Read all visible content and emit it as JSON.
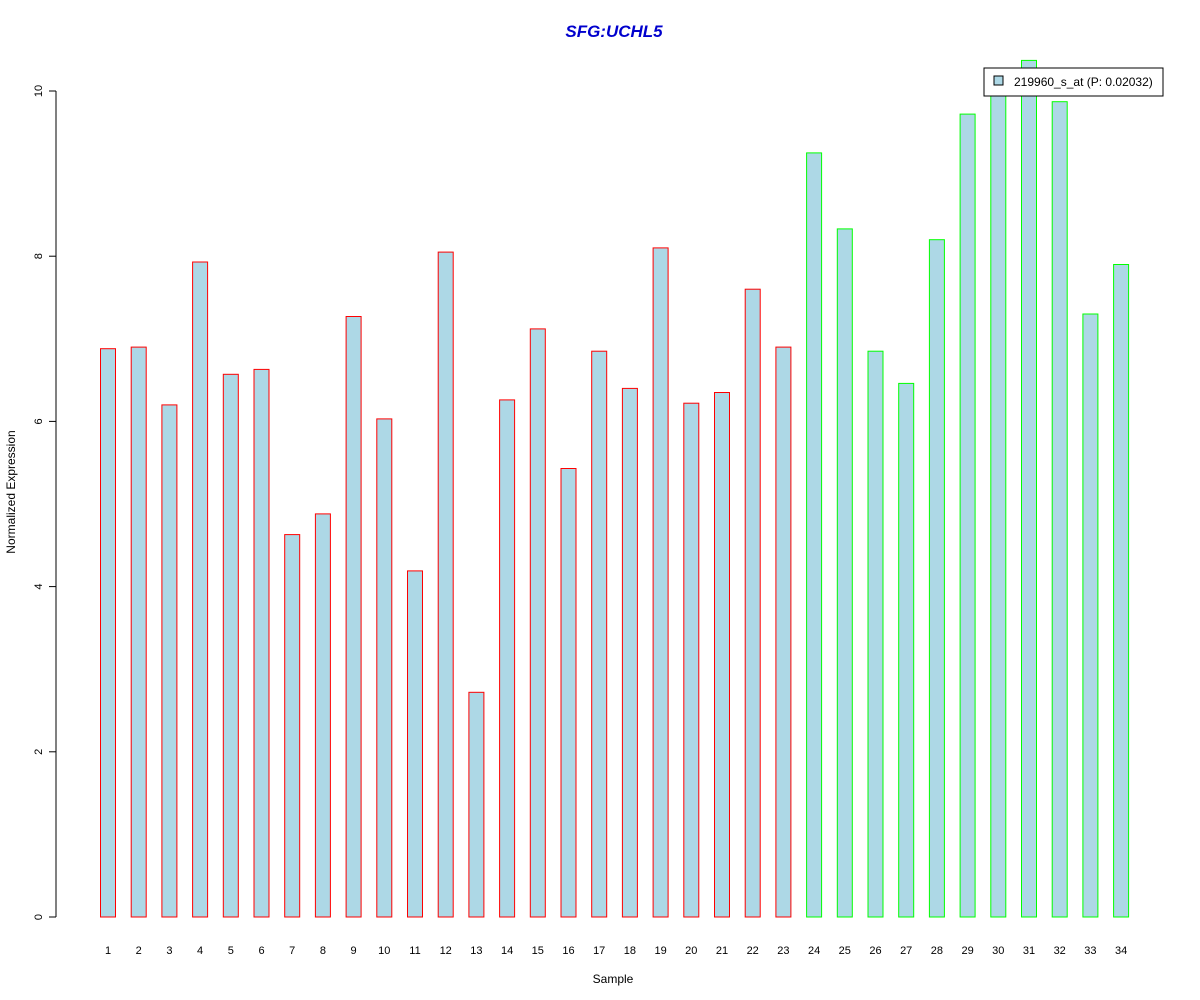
{
  "chart_data": {
    "type": "bar",
    "title": "SFG:UCHL5",
    "xlabel": "Sample",
    "ylabel": "Normalized Expression",
    "ylim": [
      0,
      10
    ],
    "yticks": [
      "0",
      "2",
      "4",
      "6",
      "8",
      "10"
    ],
    "categories": [
      "1",
      "2",
      "3",
      "4",
      "5",
      "6",
      "7",
      "8",
      "9",
      "10",
      "11",
      "12",
      "13",
      "14",
      "15",
      "16",
      "17",
      "18",
      "19",
      "20",
      "21",
      "22",
      "23",
      "24",
      "25",
      "26",
      "27",
      "28",
      "29",
      "30",
      "31",
      "32",
      "33",
      "34"
    ],
    "series": [
      {
        "name": "219960_s_at (P: 0.02032)",
        "values": [
          6.88,
          6.9,
          6.2,
          7.93,
          6.57,
          6.63,
          4.63,
          4.88,
          7.27,
          6.03,
          4.19,
          8.05,
          2.72,
          6.26,
          7.12,
          5.43,
          6.85,
          6.4,
          8.1,
          6.22,
          6.35,
          7.6,
          6.9,
          9.25,
          8.33,
          6.85,
          6.46,
          8.2,
          9.72,
          10.05,
          10.37,
          9.87,
          7.3,
          7.9
        ]
      }
    ],
    "group_a_count": 23,
    "colors": {
      "fill": "#add8e6",
      "group_a_border": "#ff0000",
      "group_b_border": "#00ff00",
      "title": "#0000cd"
    },
    "legend_position": "top-right",
    "grid": false
  }
}
